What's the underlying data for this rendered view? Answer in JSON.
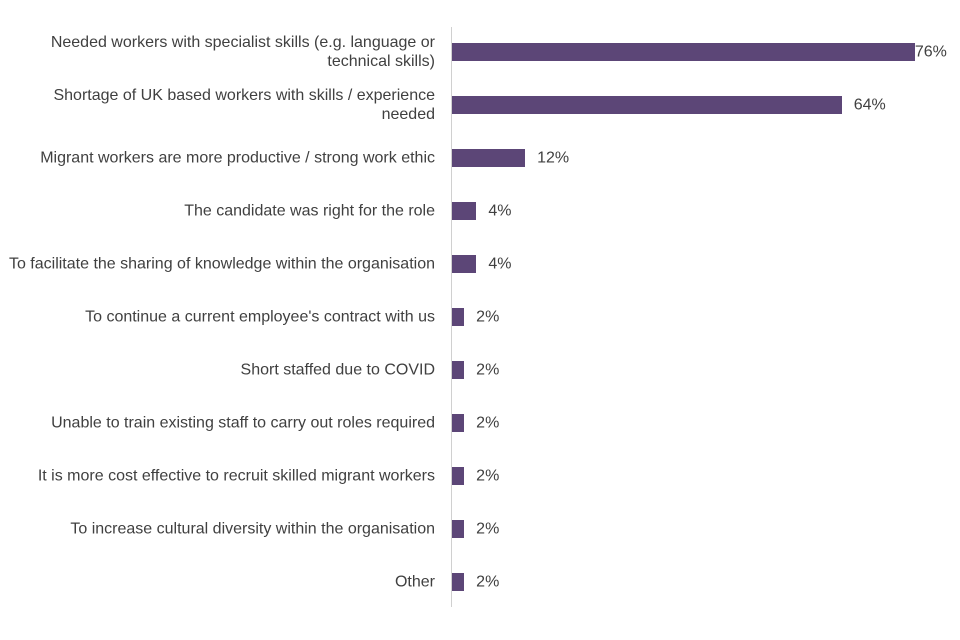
{
  "chart_data": {
    "type": "bar",
    "orientation": "horizontal",
    "categories": [
      "Needed workers with specialist skills (e.g. language or technical skills)",
      "Shortage of UK based workers with skills / experience needed",
      "Migrant workers are more productive / strong work ethic",
      "The candidate was right for the role",
      "To facilitate the sharing of knowledge within the organisation",
      "To continue a current employee's contract with us",
      "Short staffed due to COVID",
      "Unable to train existing staff to carry out roles required",
      "It is more cost effective to recruit skilled migrant workers",
      "To increase cultural diversity within the organisation",
      "Other"
    ],
    "values": [
      76,
      64,
      12,
      4,
      4,
      2,
      2,
      2,
      2,
      2,
      2
    ],
    "value_labels": [
      "76%",
      "64%",
      "12%",
      "4%",
      "4%",
      "2%",
      "2%",
      "2%",
      "2%",
      "2%",
      "2%"
    ],
    "color": "#5c4677"
  }
}
